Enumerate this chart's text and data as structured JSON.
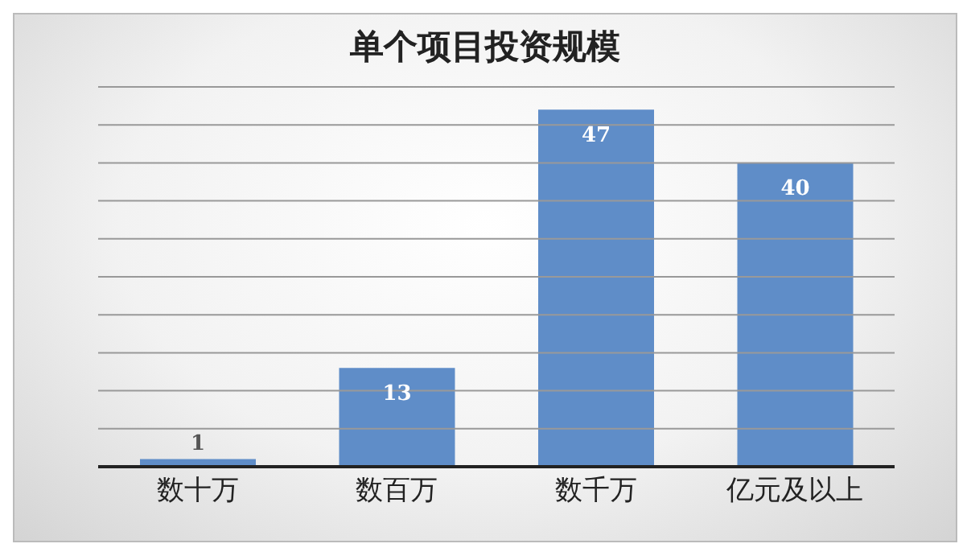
{
  "chart_data": {
    "type": "bar",
    "title": "单个项目投资规模",
    "categories": [
      "数十万",
      "数百万",
      "数千万",
      "亿元及以上"
    ],
    "values": [
      1,
      13,
      47,
      40
    ],
    "color": "#5f8dc8",
    "ylim": [
      0,
      50
    ],
    "yticks": [
      {
        "value": 0,
        "label": null
      },
      {
        "value": 5,
        "label": null
      },
      {
        "value": 10,
        "label": null
      },
      {
        "value": 15,
        "label": null
      },
      {
        "value": 20,
        "label": null
      },
      {
        "value": 25,
        "label": null
      },
      {
        "value": 30,
        "label": null
      },
      {
        "value": 35,
        "label": null
      },
      {
        "value": 40,
        "label": null
      },
      {
        "value": 45,
        "label": null
      },
      {
        "value": 50,
        "label": null
      }
    ],
    "grid": "y",
    "tick_labels": "x",
    "data_labels": true
  }
}
